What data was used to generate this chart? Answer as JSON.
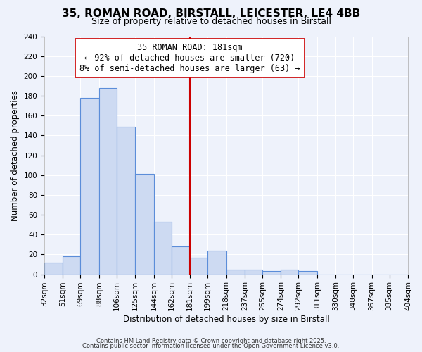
{
  "title": "35, ROMAN ROAD, BIRSTALL, LEICESTER, LE4 4BB",
  "subtitle": "Size of property relative to detached houses in Birstall",
  "xlabel": "Distribution of detached houses by size in Birstall",
  "ylabel": "Number of detached properties",
  "bar_edges": [
    32,
    51,
    69,
    88,
    106,
    125,
    144,
    162,
    181,
    199,
    218,
    237,
    255,
    274,
    292,
    311,
    330,
    348,
    367,
    385,
    404
  ],
  "bar_heights": [
    12,
    18,
    178,
    188,
    149,
    101,
    53,
    28,
    17,
    24,
    5,
    5,
    3,
    5,
    3,
    0,
    0,
    0,
    0,
    0
  ],
  "bar_color": "#cddaf2",
  "bar_edge_color": "#5b8dd9",
  "vline_x": 181,
  "vline_color": "#cc0000",
  "annotation_title": "35 ROMAN ROAD: 181sqm",
  "annotation_line1": "← 92% of detached houses are smaller (720)",
  "annotation_line2": "8% of semi-detached houses are larger (63) →",
  "annotation_box_color": "#ffffff",
  "annotation_box_edge_color": "#cc0000",
  "ylim": [
    0,
    240
  ],
  "tick_labels": [
    "32sqm",
    "51sqm",
    "69sqm",
    "88sqm",
    "106sqm",
    "125sqm",
    "144sqm",
    "162sqm",
    "181sqm",
    "199sqm",
    "218sqm",
    "237sqm",
    "255sqm",
    "274sqm",
    "292sqm",
    "311sqm",
    "330sqm",
    "348sqm",
    "367sqm",
    "385sqm",
    "404sqm"
  ],
  "footnote1": "Contains HM Land Registry data © Crown copyright and database right 2025.",
  "footnote2": "Contains public sector information licensed under the Open Government Licence v3.0.",
  "background_color": "#eef2fb",
  "grid_color": "#ffffff",
  "title_fontsize": 11,
  "subtitle_fontsize": 9,
  "axis_label_fontsize": 8.5,
  "tick_fontsize": 7.5,
  "annotation_fontsize": 8.5,
  "footnote_fontsize": 6
}
